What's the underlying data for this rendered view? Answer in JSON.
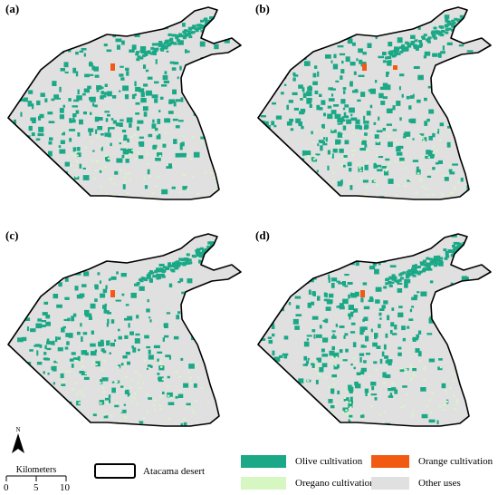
{
  "panels": [
    {
      "id": "a",
      "label": "(a)"
    },
    {
      "id": "b",
      "label": "(b)"
    },
    {
      "id": "c",
      "label": "(c)"
    },
    {
      "id": "d",
      "label": "(d)"
    }
  ],
  "north_arrow": {
    "letter": "N"
  },
  "scale_bar": {
    "title": "Kilometers",
    "ticks": [
      "0",
      "5",
      "10"
    ]
  },
  "legend": {
    "boundary": {
      "label": "Atacama desert"
    },
    "classes": [
      {
        "label": "Olive cultivation",
        "color": "#1aa886"
      },
      {
        "label": "Orange cultivation",
        "color": "#f25a13"
      },
      {
        "label": "Oregano cultivation",
        "color": "#d6f7c2"
      },
      {
        "label": "Other uses",
        "color": "#e0e0e0"
      }
    ]
  },
  "colors": {
    "olive": "#1aa886",
    "orange": "#f25a13",
    "oregano": "#d6f7c2",
    "other": "#e0e0e0",
    "boundary": "#000000"
  }
}
